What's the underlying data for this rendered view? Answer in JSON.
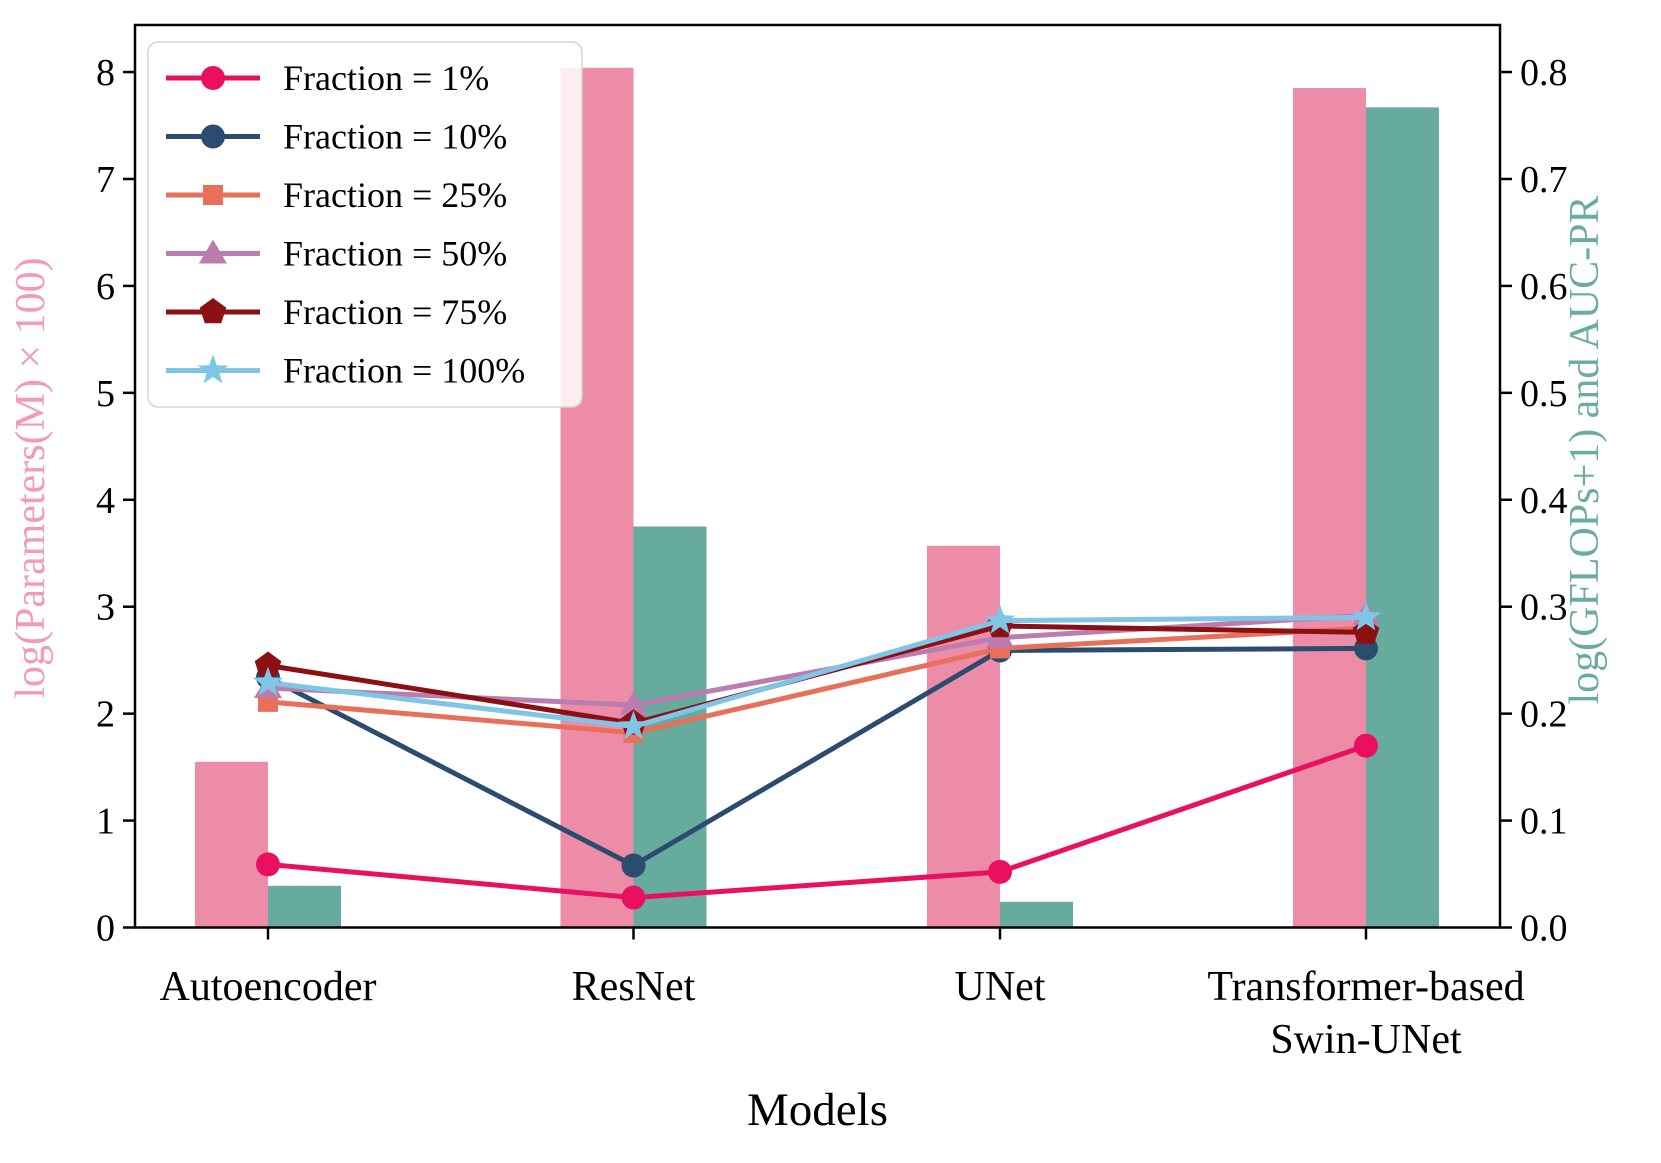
{
  "chart_data": {
    "type": "bar",
    "subtype": "grouped-bars-with-line-series-dual-axis",
    "categories": [
      "Autoencoder",
      "ResNet",
      "UNet",
      "Transformer-based\nSwin-UNet"
    ],
    "xlabel": "Models",
    "left_axis": {
      "label": "log(Parameters(M) × 100)",
      "color": "#F29CB1",
      "tick_labels": [
        "0",
        "1",
        "2",
        "3",
        "4",
        "5",
        "6",
        "7",
        "8"
      ],
      "tick_values": [
        0,
        1,
        2,
        3,
        4,
        5,
        6,
        7,
        8
      ],
      "range": [
        0,
        8.44
      ]
    },
    "right_axis": {
      "label": "log(GFLOPs+1) and AUC-PR",
      "color": "#6BACA1",
      "tick_labels": [
        "0.0",
        "0.1",
        "0.2",
        "0.3",
        "0.4",
        "0.5",
        "0.6",
        "0.7",
        "0.8"
      ],
      "tick_values": [
        0,
        0.1,
        0.2,
        0.3,
        0.4,
        0.5,
        0.6,
        0.7,
        0.8
      ],
      "range": [
        0,
        0.844
      ]
    },
    "bars": [
      {
        "name": "log(Parameters(M) × 100)",
        "axis": "left",
        "color": "#ED8CA7",
        "values": [
          1.55,
          8.04,
          3.57,
          7.85
        ]
      },
      {
        "name": "log(GFLOPs+1)",
        "axis": "right",
        "color": "#67AB9F",
        "values": [
          0.039,
          0.375,
          0.024,
          0.767
        ]
      }
    ],
    "series": [
      {
        "name": "Fraction = 1%",
        "axis": "right",
        "color": "#E9105F",
        "marker": "circle",
        "values": [
          0.059,
          0.028,
          0.052,
          0.17
        ]
      },
      {
        "name": "Fraction = 10%",
        "axis": "right",
        "color": "#2B4C6F",
        "marker": "circle",
        "values": [
          0.234,
          0.058,
          0.259,
          0.261
        ]
      },
      {
        "name": "Fraction = 25%",
        "axis": "right",
        "color": "#E8705B",
        "marker": "square",
        "values": [
          0.211,
          0.182,
          0.261,
          0.28
        ]
      },
      {
        "name": "Fraction = 50%",
        "axis": "right",
        "color": "#BC7CAD",
        "marker": "triangle",
        "values": [
          0.224,
          0.208,
          0.271,
          0.292
        ]
      },
      {
        "name": "Fraction = 75%",
        "axis": "right",
        "color": "#8A1014",
        "marker": "pentagon",
        "values": [
          0.245,
          0.191,
          0.282,
          0.276
        ]
      },
      {
        "name": "Fraction = 100%",
        "axis": "right",
        "color": "#7FC6E6",
        "marker": "star",
        "values": [
          0.229,
          0.188,
          0.287,
          0.29
        ]
      }
    ],
    "legend": {
      "position": "upper-left",
      "background": "#ffffff",
      "background_opacity": 0.85,
      "border_color": "#D5D5D5"
    },
    "grid": false,
    "plot_border_color": "#000000",
    "text_color": "#000000"
  }
}
